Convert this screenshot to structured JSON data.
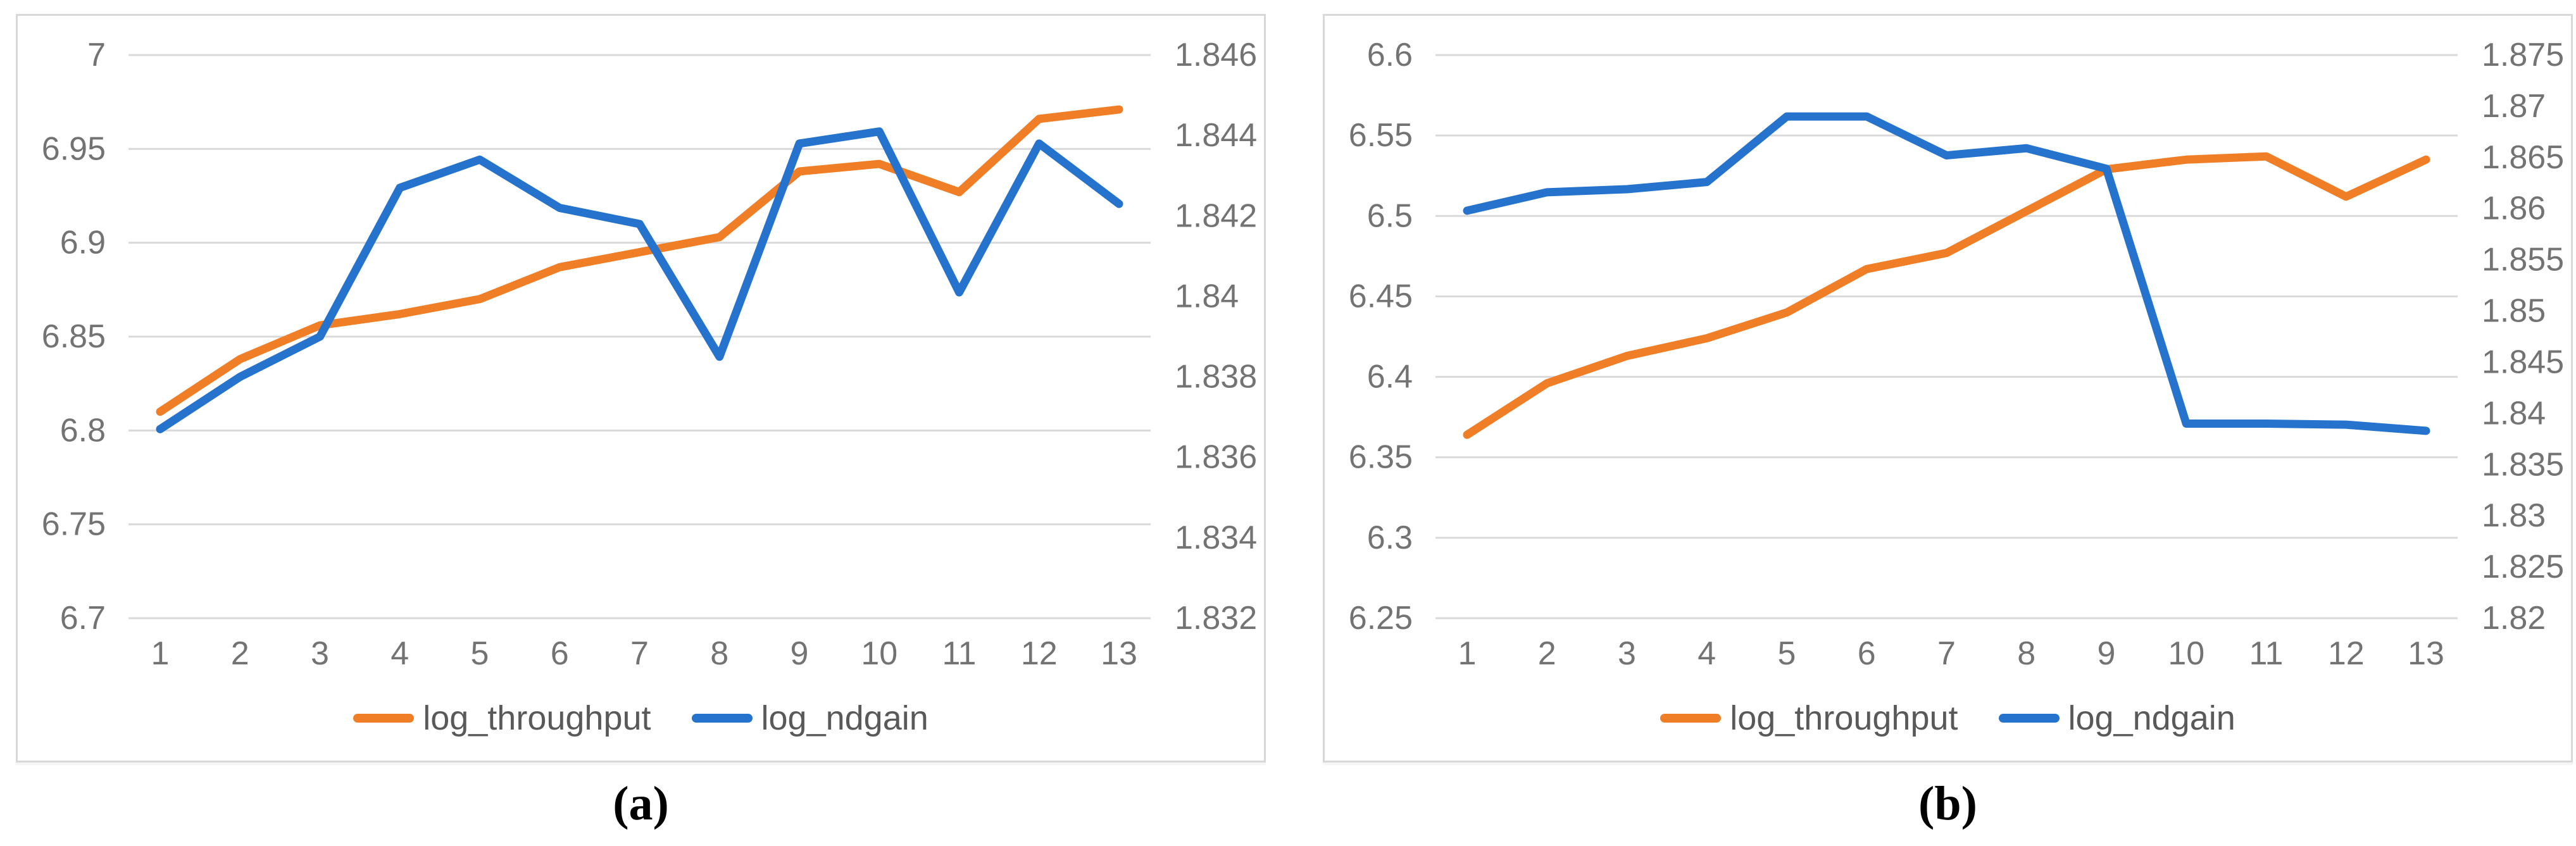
{
  "colors": {
    "throughput": "#F07E27",
    "ndgain": "#2573CC",
    "grid": "#D9D9D9",
    "tick_text": "#737373",
    "legend_text": "#595959",
    "panel_border": "#D8D8D8"
  },
  "panels": [
    {
      "caption": "(a)"
    },
    {
      "caption": "(b)"
    }
  ],
  "chart_data": [
    {
      "type": "line",
      "title": "",
      "xlabel": "",
      "ylabel": "",
      "grid": true,
      "legend_position": "bottom",
      "categories": [
        "1",
        "2",
        "3",
        "4",
        "5",
        "6",
        "7",
        "8",
        "9",
        "10",
        "11",
        "12",
        "13"
      ],
      "left_axis": {
        "min": 6.7,
        "max": 7.0,
        "ticks": [
          "7",
          "6.95",
          "6.9",
          "6.85",
          "6.8",
          "6.75",
          "6.7"
        ]
      },
      "right_axis": {
        "min": 1.832,
        "max": 1.846,
        "ticks": [
          "1.846",
          "1.844",
          "1.842",
          "1.84",
          "1.838",
          "1.836",
          "1.834",
          "1.832"
        ]
      },
      "series": [
        {
          "name": "log_throughput",
          "axis": "left",
          "color_key": "throughput",
          "values": [
            6.81,
            6.838,
            6.856,
            6.862,
            6.87,
            6.887,
            6.895,
            6.903,
            6.938,
            6.942,
            6.927,
            6.966,
            6.971
          ]
        },
        {
          "name": "log_ndgain",
          "axis": "right",
          "color_key": "ndgain",
          "values": [
            1.8367,
            1.838,
            1.839,
            1.8427,
            1.8434,
            1.8422,
            1.8418,
            1.8385,
            1.8438,
            1.8441,
            1.8401,
            1.8438,
            1.8423
          ]
        }
      ]
    },
    {
      "type": "line",
      "title": "",
      "xlabel": "",
      "ylabel": "",
      "grid": true,
      "legend_position": "bottom",
      "categories": [
        "1",
        "2",
        "3",
        "4",
        "5",
        "6",
        "7",
        "8",
        "9",
        "10",
        "11",
        "12",
        "13"
      ],
      "left_axis": {
        "min": 6.25,
        "max": 6.6,
        "ticks": [
          "6.6",
          "6.55",
          "6.5",
          "6.45",
          "6.4",
          "6.35",
          "6.3",
          "6.25"
        ]
      },
      "right_axis": {
        "min": 1.82,
        "max": 1.875,
        "ticks": [
          "1.875",
          "1.87",
          "1.865",
          "1.86",
          "1.855",
          "1.85",
          "1.845",
          "1.84",
          "1.835",
          "1.83",
          "1.825",
          "1.82"
        ]
      },
      "series": [
        {
          "name": "log_throughput",
          "axis": "left",
          "color_key": "throughput",
          "values": [
            6.364,
            6.396,
            6.413,
            6.424,
            6.44,
            6.467,
            6.477,
            6.503,
            6.529,
            6.535,
            6.537,
            6.512,
            6.535
          ]
        },
        {
          "name": "log_ndgain",
          "axis": "right",
          "color_key": "ndgain",
          "values": [
            1.8598,
            1.8616,
            1.8619,
            1.8626,
            1.869,
            1.869,
            1.8652,
            1.8659,
            1.8639,
            1.839,
            1.839,
            1.8389,
            1.8383
          ]
        }
      ]
    }
  ]
}
